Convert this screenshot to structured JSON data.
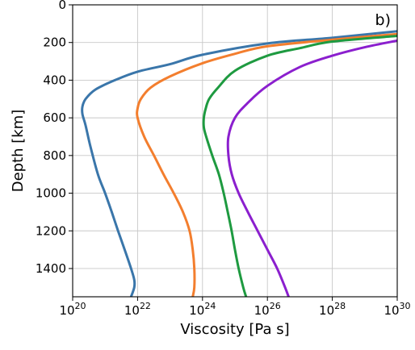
{
  "chart_data": {
    "type": "line",
    "panel_label": "b)",
    "xlabel": "Viscosity [Pa s]",
    "ylabel": "Depth [km]",
    "x_scale": "log",
    "xlim": [
      1e+20,
      1e+30
    ],
    "ylim": [
      1550,
      0
    ],
    "x_tick_labels": [
      {
        "base": "10",
        "exp": "20"
      },
      {
        "base": "10",
        "exp": "22"
      },
      {
        "base": "10",
        "exp": "24"
      },
      {
        "base": "10",
        "exp": "26"
      },
      {
        "base": "10",
        "exp": "28"
      },
      {
        "base": "10",
        "exp": "30"
      }
    ],
    "x_ticks": [
      1e+20,
      1e+22,
      1e+24,
      1e+26,
      1e+28,
      1e+30
    ],
    "y_ticks": [
      0,
      200,
      400,
      600,
      800,
      1000,
      1200,
      1400
    ],
    "y_tick_labels": [
      "0",
      "200",
      "400",
      "600",
      "800",
      "1000",
      "1200",
      "1400"
    ],
    "grid": true,
    "legend": "none",
    "series": [
      {
        "color": "#3a76aa",
        "points": [
          [
            1e+30,
            140
          ],
          [
            1e+28,
            175
          ],
          [
            1e+26,
            205
          ],
          [
            1e+24,
            265
          ],
          [
            1e+23,
            315
          ],
          [
            1e+22,
            355
          ],
          [
            2e+21,
            400
          ],
          [
            5e+20,
            450
          ],
          [
            2.5e+20,
            500
          ],
          [
            2e+20,
            540
          ],
          [
            2e+20,
            580
          ],
          [
            2.5e+20,
            640
          ],
          [
            3.5e+20,
            750
          ],
          [
            6e+20,
            900
          ],
          [
            1e+21,
            1000
          ],
          [
            1.6e+21,
            1100
          ],
          [
            2.5e+21,
            1200
          ],
          [
            4e+21,
            1300
          ],
          [
            6.3e+21,
            1400
          ],
          [
            7.9e+21,
            1460
          ],
          [
            7.9e+21,
            1500
          ],
          [
            6.3e+21,
            1550
          ]
        ]
      },
      {
        "color": "#f37e2e",
        "points": [
          [
            1e+30,
            155
          ],
          [
            1e+28,
            185
          ],
          [
            1e+26,
            220
          ],
          [
            1e+25,
            260
          ],
          [
            1e+24,
            310
          ],
          [
            1e+23,
            380
          ],
          [
            2.5e+22,
            440
          ],
          [
            1.26e+22,
            500
          ],
          [
            1e+22,
            550
          ],
          [
            1e+22,
            600
          ],
          [
            1.6e+22,
            700
          ],
          [
            3.2e+22,
            800
          ],
          [
            6.3e+22,
            900
          ],
          [
            1.3e+23,
            1000
          ],
          [
            2.5e+23,
            1100
          ],
          [
            4e+23,
            1200
          ],
          [
            5e+23,
            1300
          ],
          [
            5.6e+23,
            1400
          ],
          [
            5.6e+23,
            1500
          ],
          [
            5e+23,
            1550
          ]
        ]
      },
      {
        "color": "#1e9a40",
        "points": [
          [
            1e+30,
            165
          ],
          [
            1e+28,
            195
          ],
          [
            1e+27,
            230
          ],
          [
            1e+26,
            270
          ],
          [
            1e+25,
            350
          ],
          [
            3e+24,
            440
          ],
          [
            1.6e+24,
            500
          ],
          [
            1.26e+24,
            550
          ],
          [
            1.1e+24,
            600
          ],
          [
            1.1e+24,
            650
          ],
          [
            1.3e+24,
            700
          ],
          [
            2e+24,
            800
          ],
          [
            3.2e+24,
            900
          ],
          [
            4.5e+24,
            1000
          ],
          [
            6e+24,
            1100
          ],
          [
            7.9e+24,
            1200
          ],
          [
            1e+25,
            1300
          ],
          [
            1.3e+25,
            1400
          ],
          [
            1.8e+25,
            1500
          ],
          [
            2.2e+25,
            1550
          ]
        ]
      },
      {
        "color": "#8b1fce",
        "points": [
          [
            1e+30,
            190
          ],
          [
            1e+29,
            225
          ],
          [
            1e+28,
            270
          ],
          [
            1e+27,
            330
          ],
          [
            1e+26,
            430
          ],
          [
            2.5e+25,
            520
          ],
          [
            1e+25,
            600
          ],
          [
            6.3e+24,
            700
          ],
          [
            6.3e+24,
            800
          ],
          [
            8e+24,
            900
          ],
          [
            1.3e+25,
            1000
          ],
          [
            2.5e+25,
            1100
          ],
          [
            5e+25,
            1200
          ],
          [
            1e+26,
            1300
          ],
          [
            2e+26,
            1400
          ],
          [
            3.5e+26,
            1500
          ],
          [
            4.5e+26,
            1550
          ]
        ]
      }
    ]
  }
}
